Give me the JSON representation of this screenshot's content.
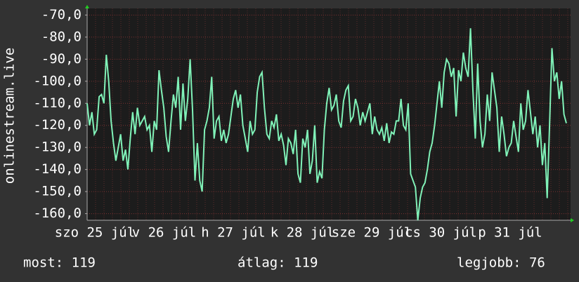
{
  "chart_data": {
    "type": "line",
    "y_label": "onlinestream.live",
    "xlabels": [
      "szo 25 júl",
      "v 26 júl",
      "h 27 júl",
      "k 28 júl",
      "sze 29 júl",
      "cs 30 júl",
      "p 31 júl"
    ],
    "color": "#80f2b8",
    "ylim": [
      -163,
      -67
    ],
    "yticks": [
      {
        "value": -70,
        "label": "-70,0"
      },
      {
        "value": -80,
        "label": "-80,0"
      },
      {
        "value": -90,
        "label": "-90,0"
      },
      {
        "value": -100,
        "label": "-100,0"
      },
      {
        "value": -110,
        "label": "-110,0"
      },
      {
        "value": -120,
        "label": "-120,0"
      },
      {
        "value": -130,
        "label": "-130,0"
      },
      {
        "value": -140,
        "label": "-140,0"
      },
      {
        "value": -150,
        "label": "-150,0"
      },
      {
        "value": -160,
        "label": "-160,0"
      }
    ],
    "grid": true,
    "values": [
      -110,
      -120,
      -114,
      -124,
      -122,
      -107,
      -106,
      -110,
      -88,
      -100,
      -118,
      -128,
      -136,
      -130,
      -124,
      -136,
      -131,
      -140,
      -126,
      -114,
      -124,
      -112,
      -120,
      -118,
      -116,
      -122,
      -120,
      -132,
      -118,
      -122,
      -95,
      -104,
      -112,
      -125,
      -132,
      -118,
      -106,
      -112,
      -98,
      -122,
      -101,
      -118,
      -108,
      -90,
      -113,
      -145,
      -128,
      -145,
      -150,
      -122,
      -118,
      -112,
      -98,
      -126,
      -118,
      -116,
      -127,
      -122,
      -128,
      -124,
      -116,
      -108,
      -104,
      -112,
      -106,
      -120,
      -126,
      -132,
      -118,
      -124,
      -122,
      -105,
      -98,
      -96,
      -112,
      -124,
      -126,
      -118,
      -121,
      -115,
      -127,
      -124,
      -129,
      -138,
      -126,
      -128,
      -133,
      -122,
      -142,
      -146,
      -126,
      -130,
      -122,
      -142,
      -136,
      -120,
      -146,
      -141,
      -144,
      -122,
      -110,
      -103,
      -113,
      -111,
      -106,
      -118,
      -121,
      -109,
      -104,
      -102,
      -118,
      -116,
      -108,
      -112,
      -120,
      -114,
      -118,
      -114,
      -110,
      -124,
      -116,
      -122,
      -124,
      -121,
      -127,
      -119,
      -128,
      -123,
      -124,
      -118,
      -118,
      -108,
      -120,
      -122,
      -110,
      -142,
      -145,
      -148,
      -163,
      -153,
      -148,
      -146,
      -140,
      -132,
      -128,
      -120,
      -110,
      -100,
      -112,
      -96,
      -90,
      -92,
      -98,
      -94,
      -116,
      -95,
      -100,
      -87,
      -94,
      -98,
      -76,
      -104,
      -126,
      -92,
      -118,
      -130,
      -124,
      -106,
      -118,
      -96,
      -104,
      -112,
      -132,
      -116,
      -124,
      -134,
      -130,
      -128,
      -118,
      -125,
      -132,
      -110,
      -122,
      -118,
      -104,
      -114,
      -124,
      -116,
      -130,
      -120,
      -138,
      -128,
      -153,
      -120,
      -85,
      -100,
      -96,
      -108,
      -100,
      -115,
      -119
    ],
    "footer": {
      "current": "most: 119",
      "average": "átlag: 119",
      "best": "legjobb: 76"
    }
  }
}
